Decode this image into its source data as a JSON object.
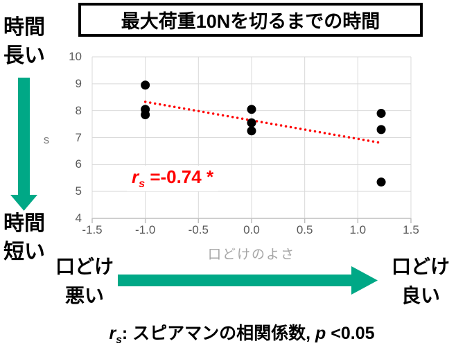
{
  "title": "最大荷重10Nを切るまでの時間",
  "left_annotation": {
    "top": {
      "line1": "時間",
      "line2": "長い"
    },
    "bottom": {
      "line1": "時間",
      "line2": "短い"
    }
  },
  "bottom_annotation": {
    "left": {
      "line1": "口どけ",
      "line2": "悪い"
    },
    "right": {
      "line1": "口どけ",
      "line2": "良い"
    }
  },
  "correlation": {
    "prefix": "r",
    "sub": "s",
    "rest": " =-0.74 *"
  },
  "caption": {
    "prefix": "r",
    "sub": "s",
    "mid": ": スピアマンの相関係数, ",
    "p": "p",
    "rest": " <0.05"
  },
  "colors": {
    "accent_green": "#00a886",
    "annotation_red": "#ff0000",
    "gridline": "#d9d9d9",
    "axis": "#bfbfbf",
    "tick_label": "#595959",
    "axis_title": "#a6a6a6",
    "point": "#000000"
  },
  "chart_data": {
    "type": "scatter",
    "title": "最大荷重10Nを切るまでの時間",
    "xlabel": "口どけのよさ",
    "ylabel": "s",
    "xlim": [
      -1.5,
      1.5
    ],
    "ylim": [
      4,
      10
    ],
    "grid": true,
    "legend": false,
    "x_ticks": [
      -1.5,
      -1.0,
      -0.5,
      0.0,
      0.5,
      1.0,
      1.5
    ],
    "x_tick_labels": [
      "-1.5",
      "-1.0",
      "-0.5",
      "0.0",
      "0.5",
      "1.0",
      "1.5"
    ],
    "y_ticks": [
      4,
      5,
      6,
      7,
      8,
      9,
      10
    ],
    "y_tick_labels": [
      "4",
      "5",
      "6",
      "7",
      "8",
      "9",
      "10"
    ],
    "points": [
      {
        "x": -1.0,
        "y": 8.95
      },
      {
        "x": -1.0,
        "y": 8.05
      },
      {
        "x": -1.0,
        "y": 7.85
      },
      {
        "x": 0.0,
        "y": 8.05
      },
      {
        "x": 0.0,
        "y": 7.55
      },
      {
        "x": 0.0,
        "y": 7.25
      },
      {
        "x": 1.22,
        "y": 7.9
      },
      {
        "x": 1.22,
        "y": 7.3
      },
      {
        "x": 1.22,
        "y": 5.35
      }
    ],
    "trendline": {
      "x1": -1.0,
      "y1": 8.33,
      "x2": 1.21,
      "y2": 6.81,
      "style": "dotted"
    },
    "correlation_label": "rs = -0.74 *",
    "significance": "p < 0.05",
    "correlation_method": "スピアマンの相関係数"
  }
}
